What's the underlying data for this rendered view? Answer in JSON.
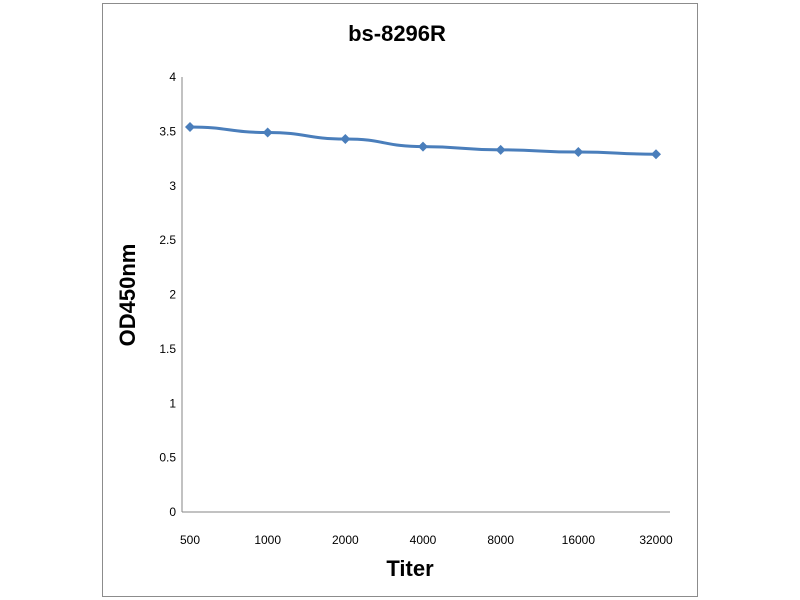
{
  "chart_data": {
    "type": "line",
    "title": "bs-8296R",
    "xlabel": "Titer",
    "ylabel": "OD450nm",
    "categories": [
      "500",
      "1000",
      "2000",
      "4000",
      "8000",
      "16000",
      "32000"
    ],
    "series": [
      {
        "values": [
          3.54,
          3.49,
          3.43,
          3.36,
          3.33,
          3.31,
          3.29
        ]
      }
    ],
    "ylim": [
      0,
      4
    ],
    "yticks": [
      "0",
      "0.5",
      "1",
      "1.5",
      "2",
      "2.5",
      "3",
      "3.5",
      "4"
    ],
    "grid": false,
    "legend": "none",
    "colors": {
      "line": "#4a7ebb",
      "axis": "#868686"
    }
  }
}
